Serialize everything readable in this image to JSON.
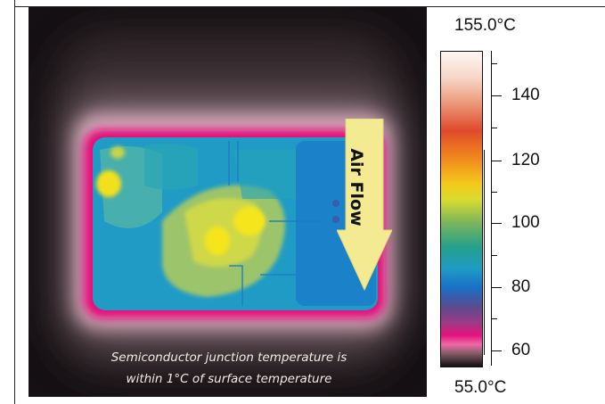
{
  "scale": {
    "max_label": "155.0°C",
    "min_label": "55.0°C",
    "ticks": [
      "140",
      "120",
      "100",
      "80",
      "60"
    ]
  },
  "annotation": {
    "airflow_label": "Air Flow"
  },
  "caption": {
    "line1": "Semiconductor junction temperature is",
    "line2": "within 1°C of surface temperature"
  }
}
